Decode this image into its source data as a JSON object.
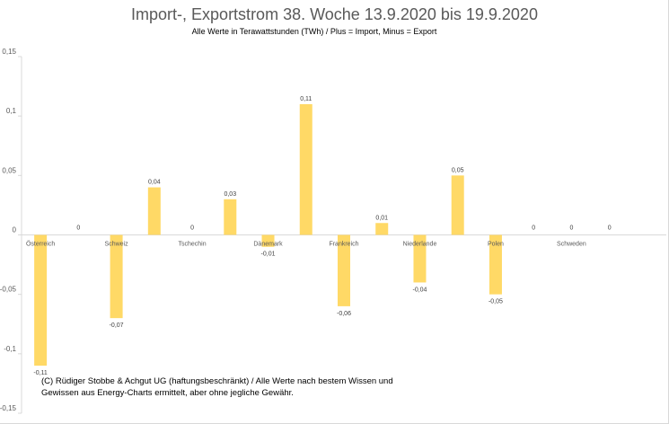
{
  "chart_data": {
    "type": "bar",
    "title": "Import-, Exportstrom 38. Woche 13.9.2020 bis 19.9.2020",
    "subtitle": "Alle Werte in Terawattstunden (TWh) / Plus = Import, Minus = Export",
    "categories": [
      "Österreich",
      "",
      "Schweiz",
      "",
      "Tschechin",
      "",
      "Dänemark",
      "",
      "Frankreich",
      "",
      "Niederlande",
      "",
      "Polen",
      "",
      "Schweden",
      "",
      ""
    ],
    "values": [
      -0.11,
      0,
      -0.07,
      0.04,
      0,
      0.03,
      -0.01,
      0.11,
      -0.06,
      0.01,
      -0.04,
      0.05,
      -0.05,
      0,
      0,
      0,
      null
    ],
    "labels": [
      "-0,11",
      "0",
      "-0,07",
      "0,04",
      "0",
      "0,03",
      "-0,01",
      "0,11",
      "-0,06",
      "0,01",
      "-0,04",
      "0,05",
      "-0,05",
      "0",
      "0",
      "0",
      ""
    ],
    "yticks": [
      -0.15,
      -0.1,
      -0.05,
      0,
      0.05,
      0.1,
      0.15
    ],
    "ytick_labels": [
      "-0,15",
      "-0,1",
      "-0,05",
      "0",
      "0,05",
      "0,1",
      "0,15"
    ],
    "ylim": [
      -0.15,
      0.15
    ],
    "grid": false,
    "bar_color": "#ffd966",
    "axis_color": "#d9d9d9"
  },
  "note": {
    "line1": "(C) Rüdiger Stobbe & Achgut UG (haftungsbeschränkt) / Alle Werte nach bestem Wissen und",
    "line2": "Gewissen aus Energy-Charts ermittelt, aber ohne jegliche Gewähr."
  }
}
